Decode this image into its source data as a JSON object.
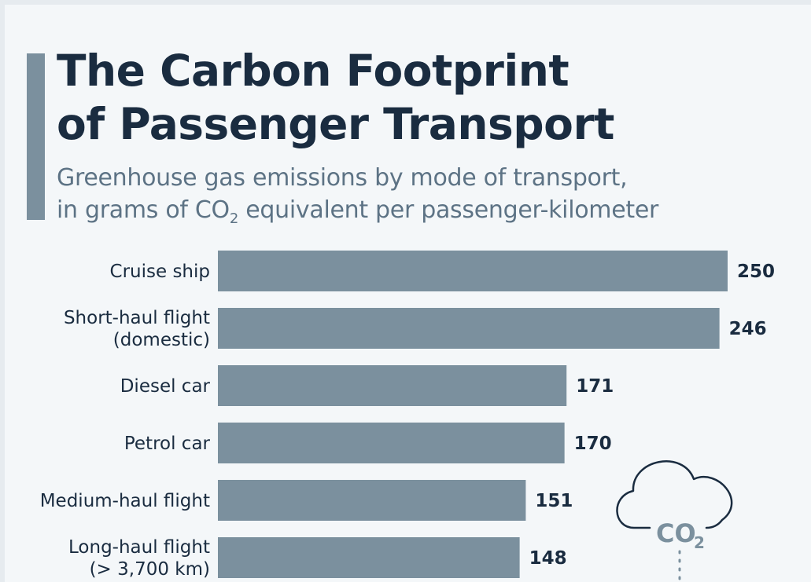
{
  "header": {
    "title_line1": "The Carbon Footprint",
    "title_line2": "of Passenger Transport",
    "subtitle_line1": "Greenhouse gas emissions by mode of transport,",
    "subtitle_line2_pre": "in grams of CO",
    "subtitle_line2_sub": "2",
    "subtitle_line2_post": " equivalent per passenger-kilometer"
  },
  "icon": {
    "name": "co2-cloud-icon",
    "label": "CO",
    "label_sub": "2"
  },
  "colors": {
    "bar": "#7b909e",
    "text": "#1a2c40",
    "subtitle": "#5d7385"
  },
  "chart_data": {
    "type": "bar",
    "orientation": "horizontal",
    "categories": [
      [
        "Cruise ship"
      ],
      [
        "Short-haul flight",
        "(domestic)"
      ],
      [
        "Diesel car"
      ],
      [
        "Petrol car"
      ],
      [
        "Medium-haul flight"
      ],
      [
        "Long-haul flight",
        "(> 3,700 km)"
      ]
    ],
    "values": [
      250,
      246,
      171,
      170,
      151,
      148
    ],
    "xlim": [
      0,
      250
    ]
  }
}
